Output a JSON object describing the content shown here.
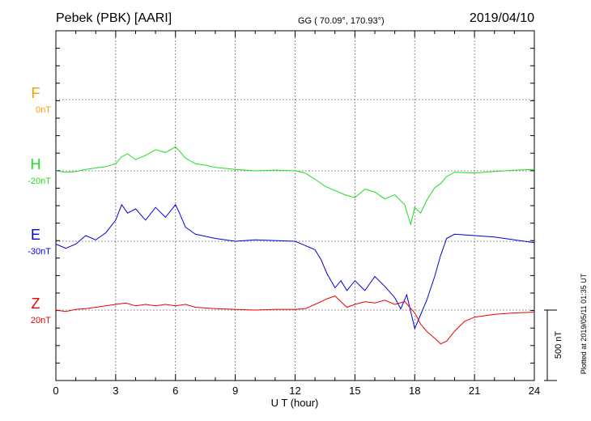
{
  "header": {
    "station": "Pebek (PBK)  [AARI]",
    "coords": "GG ( 70.09°, 170.93°)",
    "date": "2019/04/10"
  },
  "side_note": "Plotted at 2019/05/11 01:35 UT",
  "scale_label": "500 nT",
  "chart_data": {
    "type": "line",
    "xlabel": "U T (hour)",
    "xlim": [
      0,
      24
    ],
    "xticks": [
      0,
      3,
      6,
      9,
      12,
      15,
      18,
      21,
      24
    ],
    "channels": [
      {
        "name": "F",
        "offset_label": "0nT",
        "color": "#f5a000",
        "baseline_nT": 0,
        "points": []
      },
      {
        "name": "H",
        "offset_label": "-20nT",
        "color": "#22dd22",
        "baseline_nT": -20,
        "points": [
          [
            0,
            0
          ],
          [
            0.5,
            -10
          ],
          [
            1,
            -5
          ],
          [
            1.5,
            10
          ],
          [
            2,
            20
          ],
          [
            2.5,
            30
          ],
          [
            3,
            50
          ],
          [
            3.3,
            100
          ],
          [
            3.6,
            120
          ],
          [
            4,
            80
          ],
          [
            4.5,
            110
          ],
          [
            5,
            150
          ],
          [
            5.5,
            130
          ],
          [
            6,
            170
          ],
          [
            6.2,
            140
          ],
          [
            6.5,
            90
          ],
          [
            7,
            50
          ],
          [
            7.5,
            40
          ],
          [
            8,
            25
          ],
          [
            9,
            10
          ],
          [
            10,
            0
          ],
          [
            11,
            5
          ],
          [
            12,
            0
          ],
          [
            12.5,
            -15
          ],
          [
            13,
            -60
          ],
          [
            13.5,
            -110
          ],
          [
            14,
            -140
          ],
          [
            14.5,
            -170
          ],
          [
            15,
            -190
          ],
          [
            15.5,
            -130
          ],
          [
            16,
            -150
          ],
          [
            16.5,
            -200
          ],
          [
            17,
            -170
          ],
          [
            17.5,
            -240
          ],
          [
            17.8,
            -380
          ],
          [
            18,
            -260
          ],
          [
            18.3,
            -300
          ],
          [
            18.6,
            -210
          ],
          [
            19,
            -120
          ],
          [
            19.3,
            -90
          ],
          [
            19.6,
            -40
          ],
          [
            20,
            -10
          ],
          [
            21,
            -15
          ],
          [
            22,
            -5
          ],
          [
            23,
            5
          ],
          [
            24,
            10
          ]
        ]
      },
      {
        "name": "E",
        "offset_label": "-30nT",
        "color": "#0000dd",
        "baseline_nT": -30,
        "points": [
          [
            0,
            -20
          ],
          [
            0.5,
            -50
          ],
          [
            1,
            -20
          ],
          [
            1.5,
            40
          ],
          [
            2,
            10
          ],
          [
            2.5,
            60
          ],
          [
            3,
            150
          ],
          [
            3.3,
            260
          ],
          [
            3.6,
            200
          ],
          [
            4,
            230
          ],
          [
            4.5,
            150
          ],
          [
            5,
            240
          ],
          [
            5.5,
            170
          ],
          [
            6,
            260
          ],
          [
            6.2,
            200
          ],
          [
            6.5,
            100
          ],
          [
            7,
            50
          ],
          [
            8,
            20
          ],
          [
            9,
            0
          ],
          [
            10,
            10
          ],
          [
            11,
            5
          ],
          [
            12,
            0
          ],
          [
            12.5,
            -30
          ],
          [
            13,
            -60
          ],
          [
            13.3,
            -130
          ],
          [
            13.6,
            -230
          ],
          [
            14,
            -330
          ],
          [
            14.3,
            -280
          ],
          [
            14.6,
            -350
          ],
          [
            15,
            -280
          ],
          [
            15.5,
            -350
          ],
          [
            16,
            -250
          ],
          [
            16.5,
            -320
          ],
          [
            17,
            -400
          ],
          [
            17.3,
            -480
          ],
          [
            17.6,
            -380
          ],
          [
            18,
            -620
          ],
          [
            18.3,
            -520
          ],
          [
            18.6,
            -420
          ],
          [
            19,
            -250
          ],
          [
            19.3,
            -100
          ],
          [
            19.6,
            20
          ],
          [
            20,
            50
          ],
          [
            21,
            40
          ],
          [
            22,
            30
          ],
          [
            23,
            10
          ],
          [
            24,
            -10
          ]
        ]
      },
      {
        "name": "Z",
        "offset_label": "20nT",
        "color": "#ee0000",
        "baseline_nT": 20,
        "points": [
          [
            0,
            0
          ],
          [
            0.5,
            -10
          ],
          [
            1,
            5
          ],
          [
            1.5,
            10
          ],
          [
            2,
            20
          ],
          [
            2.5,
            30
          ],
          [
            3,
            40
          ],
          [
            3.5,
            50
          ],
          [
            4,
            30
          ],
          [
            4.5,
            40
          ],
          [
            5,
            30
          ],
          [
            5.5,
            40
          ],
          [
            6,
            30
          ],
          [
            6.5,
            40
          ],
          [
            7,
            20
          ],
          [
            8,
            10
          ],
          [
            9,
            5
          ],
          [
            10,
            0
          ],
          [
            11,
            5
          ],
          [
            12,
            5
          ],
          [
            12.5,
            10
          ],
          [
            13,
            40
          ],
          [
            13.3,
            60
          ],
          [
            13.6,
            80
          ],
          [
            14,
            100
          ],
          [
            14.3,
            60
          ],
          [
            14.6,
            20
          ],
          [
            15,
            40
          ],
          [
            15.5,
            60
          ],
          [
            16,
            50
          ],
          [
            16.5,
            70
          ],
          [
            17,
            40
          ],
          [
            17.5,
            60
          ],
          [
            18,
            -20
          ],
          [
            18.3,
            -100
          ],
          [
            18.6,
            -150
          ],
          [
            19,
            -200
          ],
          [
            19.3,
            -240
          ],
          [
            19.6,
            -220
          ],
          [
            20,
            -150
          ],
          [
            20.5,
            -80
          ],
          [
            21,
            -50
          ],
          [
            22,
            -30
          ],
          [
            23,
            -20
          ],
          [
            24,
            -15
          ]
        ]
      }
    ]
  }
}
